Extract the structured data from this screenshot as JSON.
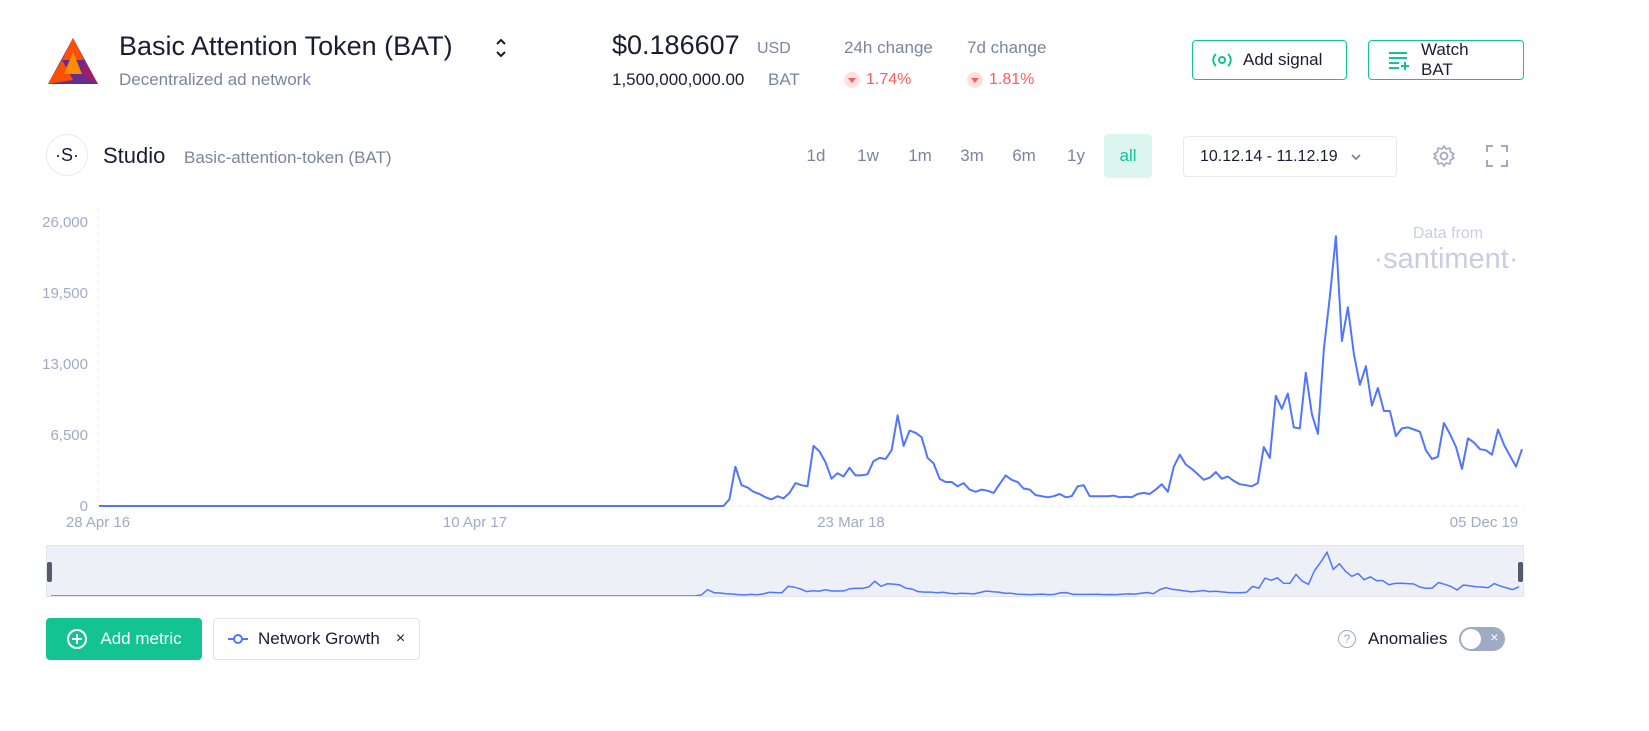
{
  "asset": {
    "name": "Basic Attention Token (BAT)",
    "description": "Decentralized ad network",
    "price": "$0.186607",
    "price_currency": "USD",
    "supply": "1,500,000,000.00",
    "supply_unit": "BAT",
    "change_24h_label": "24h change",
    "change_24h_value": "1.74%",
    "change_7d_label": "7d change",
    "change_7d_value": "1.81%",
    "accent_color": "#14c393",
    "negative_color": "#ff5b5b"
  },
  "actions": {
    "add_signal": "Add signal",
    "watch": "Watch BAT"
  },
  "studio": {
    "logo_glyph": "·S·",
    "title": "Studio",
    "subtitle": "Basic-attention-token (BAT)",
    "periods": [
      "1d",
      "1w",
      "1m",
      "3m",
      "6m",
      "1y",
      "all"
    ],
    "active_period": "all",
    "date_range": "10.12.14 - 11.12.19"
  },
  "watermark": {
    "line1": "Data from",
    "line2": "·santiment·"
  },
  "chart_data": {
    "type": "line",
    "series": [
      {
        "name": "Network Growth",
        "color": "#5275ff",
        "values": [
          0,
          0,
          0,
          0,
          0,
          0,
          0,
          0,
          0,
          0,
          0,
          0,
          0,
          0,
          0,
          0,
          0,
          0,
          0,
          0,
          0,
          0,
          0,
          0,
          0,
          0,
          0,
          0,
          0,
          0,
          0,
          0,
          0,
          0,
          0,
          0,
          0,
          0,
          0,
          0,
          0,
          0,
          0,
          0,
          0,
          0,
          0,
          0,
          0,
          0,
          0,
          0,
          0,
          0,
          0,
          0,
          0,
          0,
          0,
          0,
          0,
          0,
          0,
          0,
          0,
          0,
          0,
          0,
          0,
          0,
          0,
          0,
          0,
          0,
          0,
          0,
          0,
          0,
          0,
          0,
          0,
          0,
          0,
          0,
          0,
          0,
          0,
          0,
          0,
          0,
          0,
          0,
          0,
          0,
          0,
          0,
          0,
          0,
          0,
          0,
          0,
          0,
          0,
          0,
          0,
          600,
          3600,
          1900,
          1700,
          1300,
          1100,
          800,
          600,
          900,
          700,
          1200,
          2100,
          1900,
          1800,
          5500,
          5000,
          4000,
          2500,
          3000,
          2700,
          3500,
          2800,
          2800,
          2900,
          4100,
          4400,
          4300,
          5100,
          8300,
          5500,
          6900,
          6700,
          6300,
          4400,
          3900,
          2500,
          2200,
          2200,
          1800,
          2100,
          1500,
          1300,
          1500,
          1400,
          1200,
          2000,
          2800,
          2400,
          2200,
          1600,
          1500,
          1000,
          900,
          800,
          900,
          1100,
          800,
          900,
          1800,
          1900,
          900,
          900,
          900,
          900,
          950,
          800,
          850,
          800,
          1100,
          1200,
          1100,
          1500,
          2000,
          1300,
          3600,
          4700,
          3800,
          3400,
          2900,
          2400,
          2600,
          3100,
          2500,
          2700,
          2300,
          2000,
          1900,
          1800,
          2100,
          5400,
          4400,
          10100,
          8900,
          10300,
          7200,
          7100,
          12200,
          8400,
          6600,
          14400,
          19200,
          24700,
          15100,
          18200,
          13900,
          11100,
          12800,
          9200,
          10800,
          8700,
          8700,
          6400,
          7100,
          7200,
          7000,
          6800,
          5100,
          4300,
          4500,
          7600,
          6600,
          5400,
          3400,
          6200,
          5800,
          5200,
          5100,
          4700,
          7000,
          5600,
          4600,
          3600,
          5200
        ]
      }
    ],
    "x_tick_labels": [
      "28 Apr 16",
      "10 Apr 17",
      "23 Mar 18",
      "05 Dec 19"
    ],
    "y_tick_labels": [
      "0",
      "6,500",
      "13,000",
      "19,500",
      "26,000"
    ],
    "ylim": [
      0,
      26000
    ],
    "grid": false
  },
  "footer": {
    "add_metric": "Add metric",
    "metric_chip": "Network Growth",
    "metric_remove": "×",
    "anomalies_label": "Anomalies",
    "anomalies_enabled": false,
    "toggle_glyph": "×"
  }
}
